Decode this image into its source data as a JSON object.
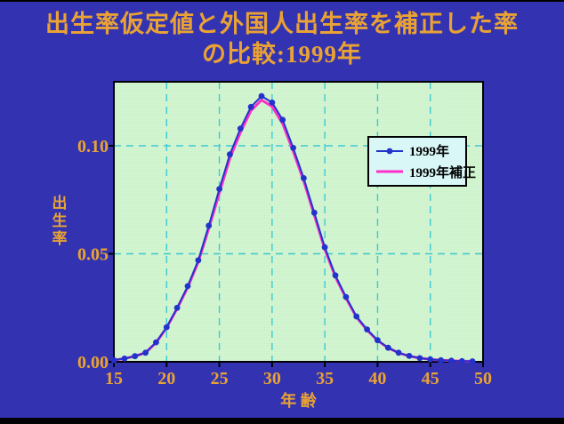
{
  "window": {
    "bg_color": "#3333B2",
    "bottom_bar_color": "#000000"
  },
  "title": {
    "line1": "出生率仮定値と外国人出生率を補正した率",
    "line2": "の比較:1999年",
    "color": "#E9A233"
  },
  "axes": {
    "x_title": "年 齢",
    "y_title": "出生率",
    "x_tick_labels": [
      "15",
      "20",
      "25",
      "30",
      "35",
      "40",
      "45",
      "50"
    ],
    "y_tick_labels": [
      "0.00",
      "0.05",
      "0.10"
    ],
    "label_color": "#E9A233"
  },
  "legend": {
    "bg_color": "#D9F7F7",
    "border_color": "#000000",
    "items": [
      {
        "label": "1999年",
        "color": "#2233CC",
        "marker": true
      },
      {
        "label": "1999年補正",
        "color": "#FF2FC8",
        "marker": false
      }
    ]
  },
  "plot": {
    "bg_color": "#CEF3CD",
    "dither_color": "#DCF8DB",
    "grid_color": "#3FC9D3",
    "border_color": "#000000"
  },
  "chart_data": {
    "type": "line",
    "title": "出生率仮定値と外国人出生率を補正した率の比較:1999年",
    "xlabel": "年 齢",
    "ylabel": "出生率",
    "xlim": [
      15,
      50
    ],
    "ylim": [
      0,
      0.13
    ],
    "x_gridlines": [
      20,
      25,
      30,
      35,
      40,
      45
    ],
    "y_gridlines": [
      0.05,
      0.1
    ],
    "x_ticks": [
      15,
      20,
      25,
      30,
      35,
      40,
      45,
      50
    ],
    "y_ticks": [
      0,
      0.05,
      0.1
    ],
    "grid": "dashed",
    "legend_position": "upper right",
    "x": [
      15,
      16,
      17,
      18,
      19,
      20,
      21,
      22,
      23,
      24,
      25,
      26,
      27,
      28,
      29,
      30,
      31,
      32,
      33,
      34,
      35,
      36,
      37,
      38,
      39,
      40,
      41,
      42,
      43,
      44,
      45,
      46,
      47,
      48,
      49
    ],
    "series": [
      {
        "name": "1999年",
        "color": "#2233CC",
        "marker": "circle",
        "values": [
          0.0008,
          0.0015,
          0.0026,
          0.0042,
          0.009,
          0.016,
          0.025,
          0.035,
          0.047,
          0.063,
          0.08,
          0.096,
          0.108,
          0.118,
          0.123,
          0.12,
          0.112,
          0.099,
          0.085,
          0.069,
          0.053,
          0.04,
          0.03,
          0.021,
          0.015,
          0.01,
          0.0065,
          0.0042,
          0.0027,
          0.0017,
          0.0011,
          0.0007,
          0.0005,
          0.0003,
          0.0002
        ]
      },
      {
        "name": "1999年補正",
        "color": "#FF2FC8",
        "marker": "none",
        "values": [
          0.0008,
          0.0015,
          0.0026,
          0.0042,
          0.0088,
          0.0157,
          0.0246,
          0.0344,
          0.0462,
          0.0617,
          0.0782,
          0.0942,
          0.1062,
          0.1163,
          0.1212,
          0.1182,
          0.1103,
          0.0975,
          0.0837,
          0.0679,
          0.0521,
          0.0393,
          0.0295,
          0.0206,
          0.0147,
          0.0098,
          0.0064,
          0.0041,
          0.0026,
          0.0017,
          0.0011,
          0.0007,
          0.0005,
          0.0003,
          0.0002
        ]
      }
    ]
  }
}
